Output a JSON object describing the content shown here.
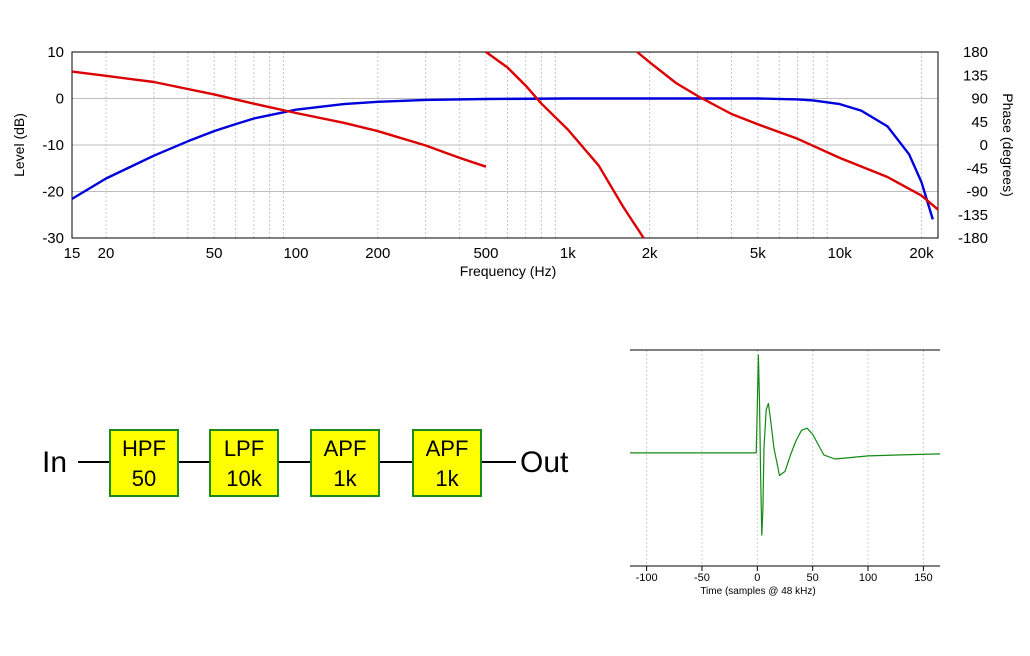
{
  "chart_data": [
    {
      "type": "line",
      "xlabel": "Frequency (Hz)",
      "ylabel_left": "Level (dB)",
      "ylabel_right": "Phase (degrees)",
      "x_scale": "log",
      "xlim": [
        15,
        23000
      ],
      "ylim_left": [
        -30,
        10
      ],
      "ylim_right": [
        -180,
        180
      ],
      "x_ticks": [
        {
          "v": 15,
          "label": "15"
        },
        {
          "v": 20,
          "label": "20"
        },
        {
          "v": 50,
          "label": "50"
        },
        {
          "v": 100,
          "label": "100"
        },
        {
          "v": 200,
          "label": "200"
        },
        {
          "v": 500,
          "label": "500"
        },
        {
          "v": 1000,
          "label": "1k"
        },
        {
          "v": 2000,
          "label": "2k"
        },
        {
          "v": 5000,
          "label": "5k"
        },
        {
          "v": 10000,
          "label": "10k"
        },
        {
          "v": 20000,
          "label": "20k"
        }
      ],
      "y_ticks_left": [
        10,
        0,
        -10,
        -20,
        -30
      ],
      "y_ticks_right": [
        180,
        135,
        90,
        45,
        0,
        -45,
        -90,
        -135,
        -180
      ],
      "grid": true,
      "series": [
        {
          "color": "#0000dd",
          "axis": "left",
          "x": [
            15,
            20,
            30,
            40,
            50,
            60,
            70,
            100,
            150,
            200,
            300,
            500,
            1000,
            2000,
            5000,
            7000,
            8000,
            10000,
            12000,
            15000,
            18000,
            20000,
            22000
          ],
          "y": [
            -21.6,
            -17.2,
            -12.3,
            -9.2,
            -7.0,
            -5.5,
            -4.3,
            -2.4,
            -1.2,
            -0.7,
            -0.3,
            -0.1,
            0,
            0,
            0,
            -0.2,
            -0.4,
            -1.2,
            -2.6,
            -6.0,
            -12.0,
            -18.0,
            -26.0
          ]
        },
        {
          "color": "#dd0000",
          "axis": "right",
          "x": [
            15,
            20,
            30,
            50,
            70,
            100,
            150,
            200,
            300,
            400,
            500
          ],
          "y": [
            142,
            134,
            122,
            98,
            80,
            62,
            43,
            27,
            -1,
            -25,
            -42
          ]
        },
        {
          "color": "#dd0000",
          "axis": "right",
          "x": [
            500,
            600,
            700,
            800,
            1000,
            1300,
            1600,
            1900
          ],
          "y": [
            180,
            150,
            115,
            80,
            30,
            -40,
            -120,
            -180
          ]
        },
        {
          "color": "#dd0000",
          "axis": "right",
          "x": [
            1800,
            2000,
            2500,
            3000,
            4000,
            5000,
            7000,
            10000,
            15000,
            20000,
            23000
          ],
          "y": [
            180,
            160,
            120,
            95,
            60,
            40,
            12,
            -25,
            -62,
            -98,
            -125
          ]
        }
      ]
    },
    {
      "type": "line",
      "xlabel": "Time (samples @ 48 kHz)",
      "xlim": [
        -115,
        165
      ],
      "ylim": [
        -1.1,
        1.0
      ],
      "x_ticks": [
        -100,
        -50,
        0,
        50,
        100,
        150
      ],
      "grid": true,
      "series": [
        {
          "color": "#138a13",
          "x": [
            -115,
            -1,
            0,
            1,
            2,
            3,
            4,
            5,
            6,
            8,
            10,
            12,
            15,
            20,
            25,
            30,
            35,
            40,
            45,
            50,
            55,
            60,
            70,
            80,
            100,
            130,
            165
          ],
          "y": [
            0,
            0,
            0.45,
            0.95,
            0.5,
            -0.2,
            -0.8,
            -0.55,
            0.05,
            0.42,
            0.48,
            0.32,
            0.05,
            -0.22,
            -0.18,
            -0.02,
            0.12,
            0.22,
            0.24,
            0.18,
            0.08,
            -0.02,
            -0.06,
            -0.05,
            -0.03,
            -0.02,
            -0.01
          ]
        }
      ]
    }
  ],
  "diagram": {
    "input_label": "In",
    "output_label": "Out",
    "blocks": [
      {
        "line1": "HPF",
        "line2": "50"
      },
      {
        "line1": "LPF",
        "line2": "10k"
      },
      {
        "line1": "APF",
        "line2": "1k"
      },
      {
        "line1": "APF",
        "line2": "1k"
      }
    ],
    "block_fill": "#ffff00",
    "block_border": "#1a8a1a"
  }
}
